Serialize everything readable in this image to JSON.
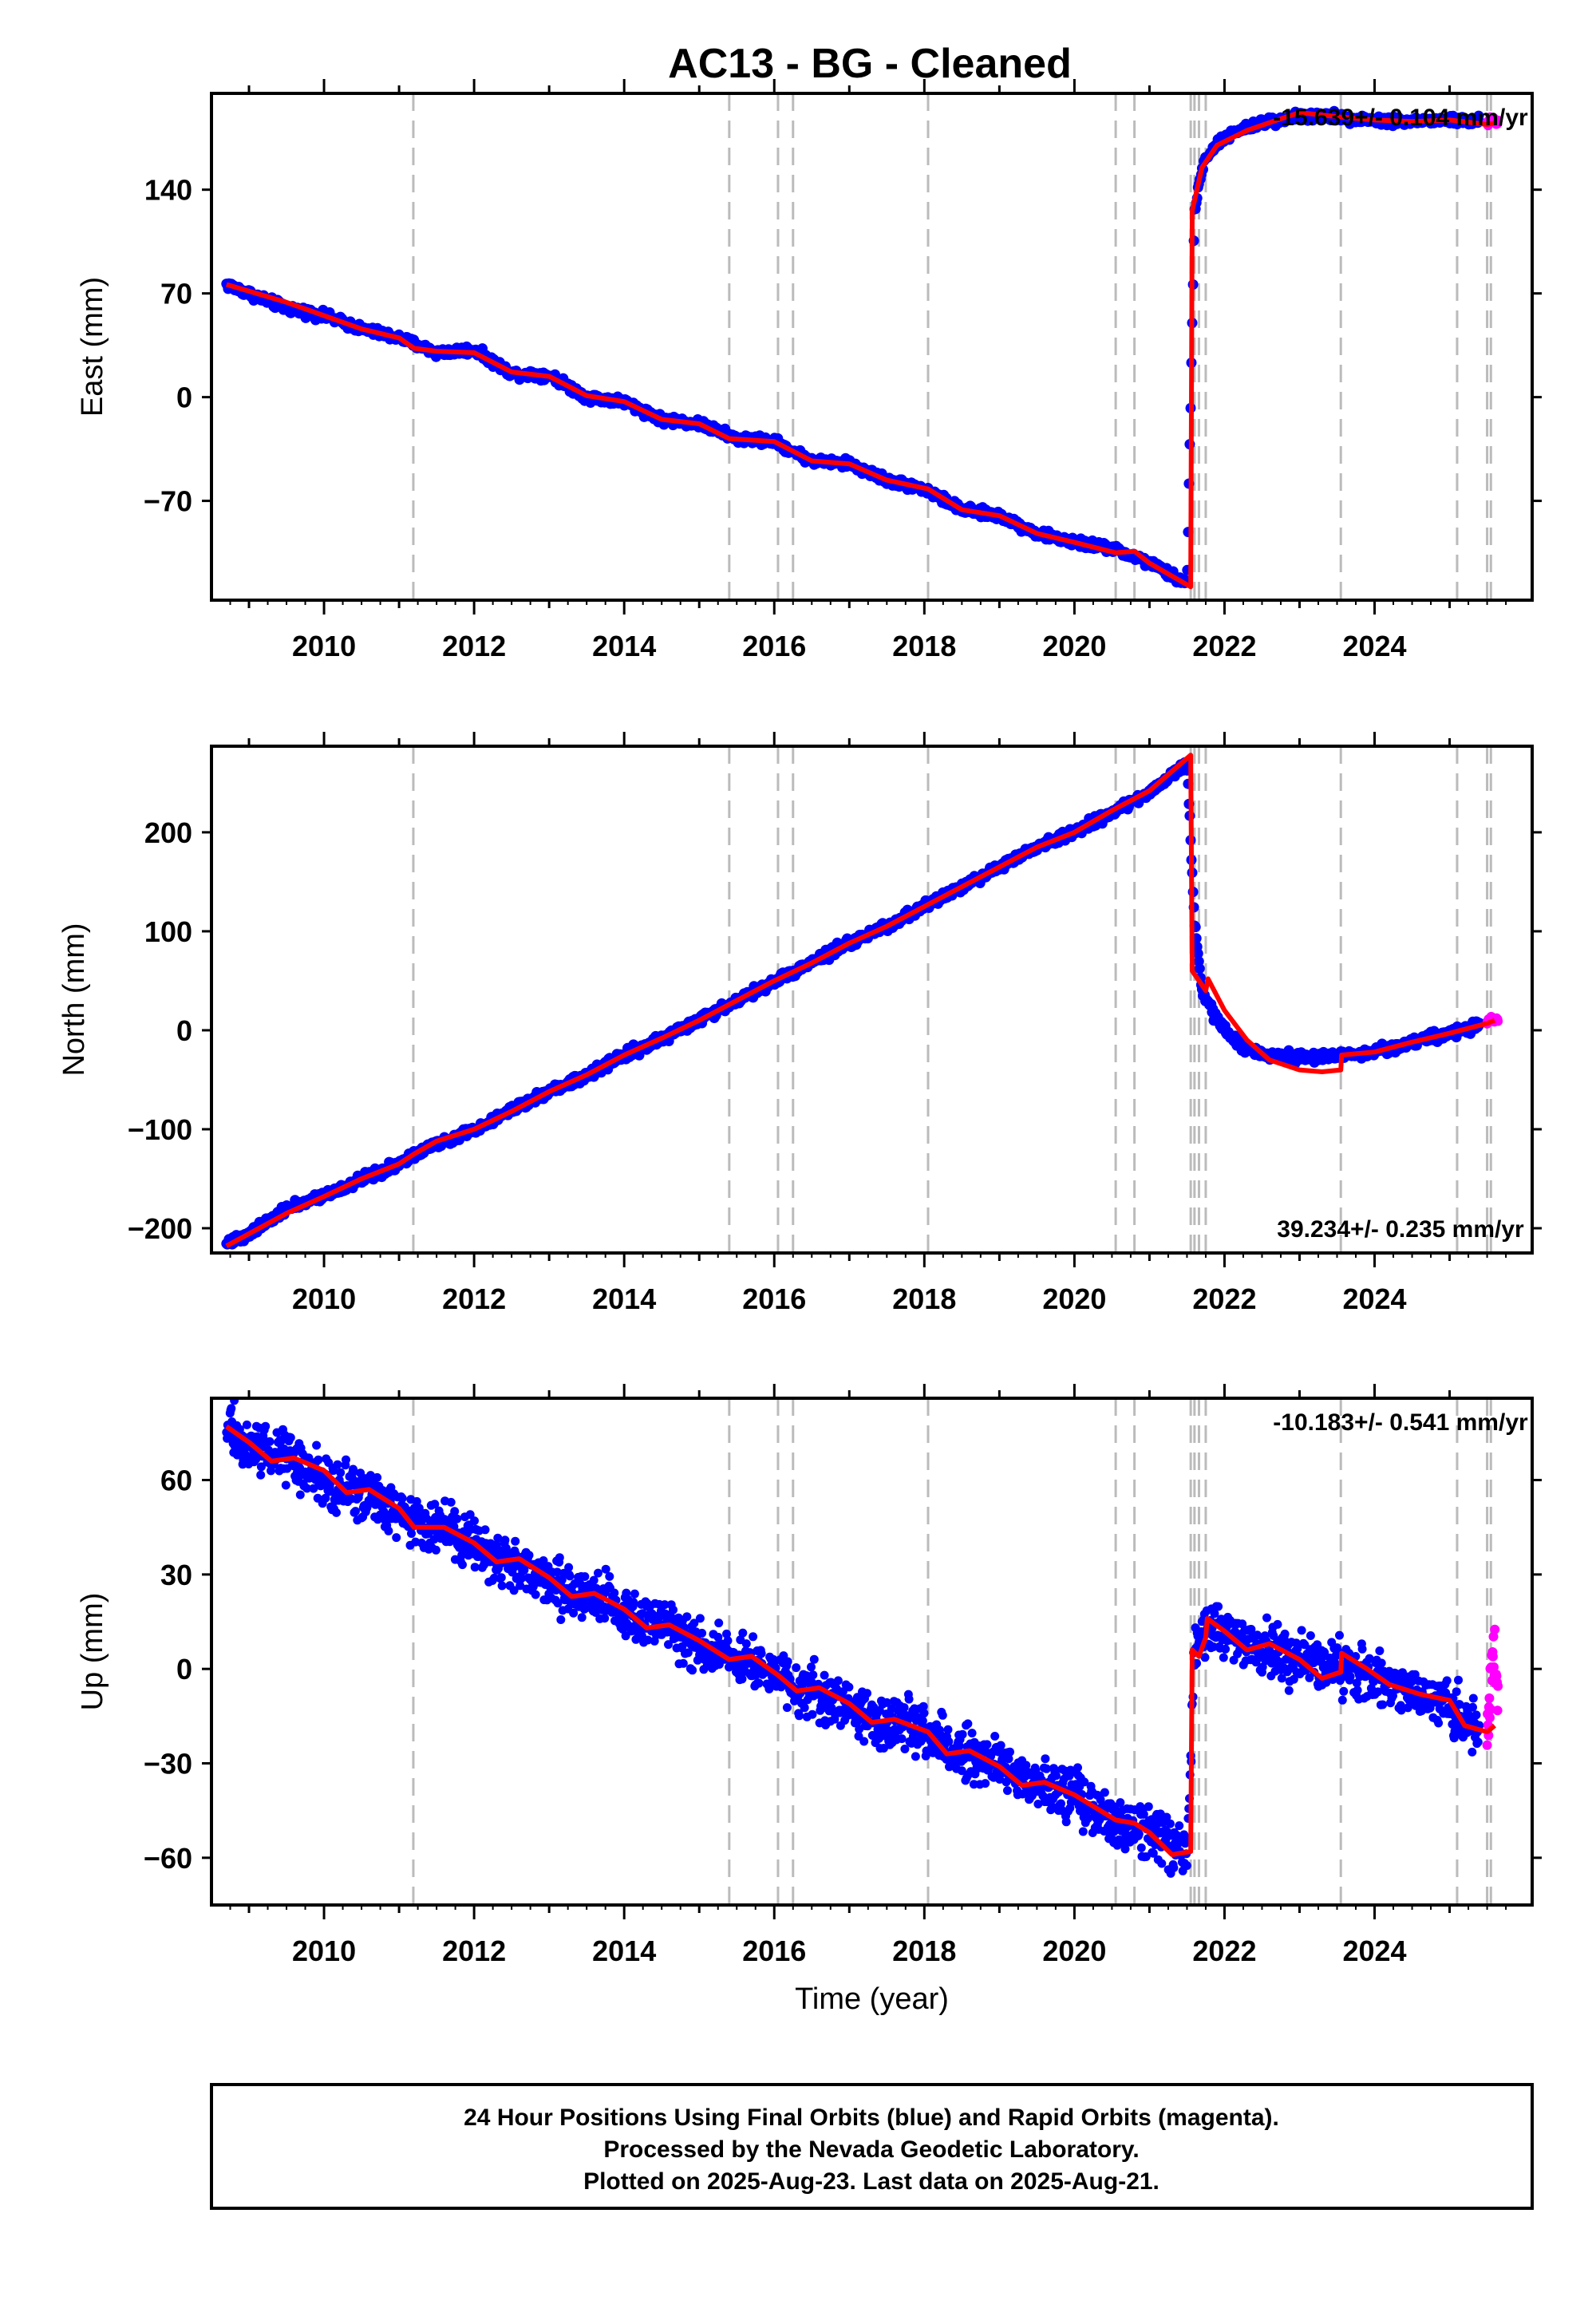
{
  "title": "AC13  - BG - Cleaned",
  "colors": {
    "final_points": "#0000ff",
    "rapid_points": "#ff00ff",
    "model_line": "#ff0000",
    "event_lines": "#bbbbbb",
    "frame": "#000000"
  },
  "chart_data": [
    {
      "type": "scatter",
      "component": "East",
      "ylabel": "East (mm)",
      "xlabel": "",
      "xlim": [
        2008.5,
        2026.1
      ],
      "ylim": [
        -137,
        205
      ],
      "yticks": [
        -70,
        0,
        70,
        140
      ],
      "xticks": [
        2010,
        2012,
        2014,
        2016,
        2018,
        2020,
        2022,
        2024
      ],
      "rate_text": "-15.639+/- 0.104 mm/yr",
      "rate_position": "top-right",
      "event_lines": [
        2011.19,
        2015.4,
        2016.05,
        2016.25,
        2018.05,
        2020.55,
        2020.8,
        2021.55,
        2021.6,
        2021.66,
        2021.75,
        2023.55,
        2025.1,
        2025.5,
        2025.55
      ],
      "series": [
        {
          "name": "Final Orbits",
          "color": "blue",
          "x": [
            2008.7,
            2009.0,
            2009.5,
            2010.0,
            2010.5,
            2011.0,
            2011.5,
            2012.0,
            2012.5,
            2013.0,
            2013.5,
            2014.0,
            2014.5,
            2015.0,
            2015.5,
            2016.0,
            2016.5,
            2017.0,
            2017.5,
            2018.0,
            2018.5,
            2019.0,
            2019.5,
            2020.0,
            2020.5,
            2021.0,
            2021.5,
            2021.6,
            2021.7,
            2021.9,
            2022.2,
            2022.5,
            2023.0,
            2023.5,
            2024.0,
            2024.5,
            2025.0,
            2025.4
          ],
          "y": [
            76,
            70,
            60,
            55,
            46,
            40,
            30,
            32,
            16,
            15,
            0,
            -3,
            -15,
            -18,
            -28,
            -30,
            -43,
            -45,
            -56,
            -62,
            -76,
            -80,
            -92,
            -98,
            -102,
            -112,
            -126,
            125,
            155,
            172,
            180,
            185,
            190,
            189,
            187,
            186,
            187,
            186
          ]
        },
        {
          "name": "Rapid Orbits",
          "color": "magenta",
          "x": [
            2025.5,
            2025.55,
            2025.6,
            2025.65
          ],
          "y": [
            184,
            188,
            186,
            185
          ]
        }
      ],
      "model": {
        "x": [
          2008.7,
          2009.5,
          2010.0,
          2010.5,
          2011.0,
          2011.2,
          2011.5,
          2012.0,
          2012.5,
          2013.0,
          2013.5,
          2014.0,
          2014.5,
          2015.0,
          2015.4,
          2016.0,
          2016.5,
          2017.0,
          2017.5,
          2018.05,
          2018.5,
          2019.0,
          2019.5,
          2020.0,
          2020.55,
          2020.8,
          2021.0,
          2021.55,
          2021.57,
          2021.7,
          2021.9,
          2022.3,
          2022.7,
          2023.0,
          2023.55,
          2024.0,
          2024.5,
          2025.0,
          2025.5,
          2025.6
        ],
        "y": [
          76,
          64,
          55,
          46,
          40,
          33,
          31,
          30,
          17,
          14,
          1,
          -3,
          -15,
          -18,
          -28,
          -30,
          -43,
          -45,
          -56,
          -62,
          -76,
          -80,
          -92,
          -98,
          -105,
          -104,
          -112,
          -128,
          126,
          155,
          170,
          180,
          187,
          192,
          189,
          187,
          186,
          187,
          184,
          185
        ]
      }
    },
    {
      "type": "scatter",
      "component": "North",
      "ylabel": "North (mm)",
      "xlabel": "",
      "xlim": [
        2008.5,
        2026.1
      ],
      "ylim": [
        -225,
        287
      ],
      "yticks": [
        -200,
        -100,
        0,
        100,
        200
      ],
      "xticks": [
        2010,
        2012,
        2014,
        2016,
        2018,
        2020,
        2022,
        2024
      ],
      "rate_text": "39.234+/- 0.235 mm/yr",
      "rate_position": "bottom-right",
      "event_lines": [
        2011.19,
        2015.4,
        2016.05,
        2016.25,
        2018.05,
        2020.55,
        2020.8,
        2021.55,
        2021.6,
        2021.66,
        2021.75,
        2023.55,
        2025.1,
        2025.5,
        2025.55
      ],
      "series": [
        {
          "name": "Final Orbits",
          "color": "blue",
          "x": [
            2008.7,
            2009.0,
            2009.5,
            2010.0,
            2010.5,
            2011.0,
            2011.5,
            2012.0,
            2012.5,
            2013.0,
            2013.5,
            2014.0,
            2014.5,
            2015.0,
            2015.5,
            2016.0,
            2016.5,
            2017.0,
            2017.5,
            2018.0,
            2018.5,
            2019.0,
            2019.5,
            2020.0,
            2020.5,
            2021.0,
            2021.5,
            2021.6,
            2021.7,
            2021.9,
            2022.2,
            2022.5,
            2023.0,
            2023.5,
            2024.0,
            2024.5,
            2025.0,
            2025.4
          ],
          "y": [
            -215,
            -205,
            -180,
            -168,
            -150,
            -135,
            -115,
            -100,
            -80,
            -62,
            -45,
            -25,
            -8,
            10,
            30,
            50,
            68,
            88,
            105,
            125,
            145,
            165,
            185,
            200,
            220,
            240,
            270,
            110,
            40,
            10,
            -15,
            -25,
            -28,
            -25,
            -22,
            -12,
            -3,
            5
          ]
        },
        {
          "name": "Rapid Orbits",
          "color": "magenta",
          "x": [
            2025.5,
            2025.55,
            2025.6,
            2025.65
          ],
          "y": [
            8,
            12,
            10,
            11
          ]
        }
      ],
      "model": {
        "x": [
          2008.7,
          2009.5,
          2010.0,
          2010.5,
          2011.0,
          2011.2,
          2011.5,
          2012.0,
          2012.5,
          2013.0,
          2013.5,
          2014.0,
          2014.5,
          2015.0,
          2015.5,
          2016.0,
          2016.5,
          2017.0,
          2017.5,
          2018.0,
          2018.5,
          2019.0,
          2019.5,
          2020.0,
          2020.5,
          2021.0,
          2021.55,
          2021.57,
          2021.75,
          2021.78,
          2022.0,
          2022.3,
          2022.6,
          2023.0,
          2023.3,
          2023.55,
          2023.56,
          2024.0,
          2024.5,
          2025.0,
          2025.5,
          2025.6
        ],
        "y": [
          -218,
          -185,
          -168,
          -150,
          -135,
          -125,
          -112,
          -100,
          -82,
          -62,
          -45,
          -25,
          -8,
          10,
          30,
          50,
          68,
          88,
          105,
          125,
          145,
          165,
          185,
          200,
          222,
          242,
          278,
          60,
          40,
          52,
          20,
          -10,
          -30,
          -40,
          -42,
          -40,
          -25,
          -22,
          -12,
          -3,
          7,
          10
        ]
      }
    },
    {
      "type": "scatter",
      "component": "Up",
      "ylabel": "Up (mm)",
      "xlabel": "Time (year)",
      "xlim": [
        2008.5,
        2026.1
      ],
      "ylim": [
        -75,
        86
      ],
      "yticks": [
        -60,
        -30,
        0,
        30,
        60
      ],
      "xticks": [
        2010,
        2012,
        2014,
        2016,
        2018,
        2020,
        2022,
        2024
      ],
      "rate_text": "-10.183+/- 0.541 mm/yr",
      "rate_position": "top-right",
      "event_lines": [
        2011.19,
        2015.4,
        2016.05,
        2016.25,
        2018.05,
        2020.55,
        2020.8,
        2021.55,
        2021.6,
        2021.66,
        2021.75,
        2023.55,
        2025.1,
        2025.5,
        2025.55
      ],
      "series": [
        {
          "name": "Final Orbits",
          "color": "blue",
          "x": [
            2008.7,
            2009.0,
            2009.5,
            2010.0,
            2010.5,
            2011.0,
            2011.5,
            2012.0,
            2012.5,
            2013.0,
            2013.5,
            2014.0,
            2014.5,
            2015.0,
            2015.5,
            2016.0,
            2016.5,
            2017.0,
            2017.5,
            2018.0,
            2018.5,
            2019.0,
            2019.5,
            2020.0,
            2020.5,
            2021.0,
            2021.5,
            2021.6,
            2021.7,
            2021.9,
            2022.2,
            2022.5,
            2023.0,
            2023.5,
            2024.0,
            2024.5,
            2025.0,
            2025.4
          ],
          "y": [
            78,
            70,
            68,
            60,
            56,
            50,
            45,
            40,
            34,
            28,
            24,
            18,
            14,
            8,
            3,
            -2,
            -8,
            -12,
            -17,
            -20,
            -27,
            -30,
            -37,
            -40,
            -48,
            -52,
            -58,
            5,
            10,
            12,
            9,
            6,
            3,
            0,
            -3,
            -8,
            -12,
            -20
          ]
        },
        {
          "name": "Rapid Orbits",
          "color": "magenta",
          "x": [
            2025.5,
            2025.55,
            2025.6,
            2025.65
          ],
          "y": [
            -18,
            -5,
            5,
            -12
          ]
        }
      ],
      "model": {
        "x": [
          2008.7,
          2009.0,
          2009.3,
          2009.6,
          2010.0,
          2010.3,
          2010.6,
          2011.0,
          2011.2,
          2011.6,
          2012.0,
          2012.3,
          2012.6,
          2013.0,
          2013.3,
          2013.6,
          2014.0,
          2014.3,
          2014.6,
          2015.0,
          2015.4,
          2015.7,
          2016.05,
          2016.3,
          2016.6,
          2017.0,
          2017.3,
          2017.6,
          2018.05,
          2018.3,
          2018.6,
          2019.0,
          2019.3,
          2019.6,
          2020.0,
          2020.55,
          2020.8,
          2021.0,
          2021.3,
          2021.55,
          2021.57,
          2021.66,
          2021.75,
          2021.77,
          2022.0,
          2022.3,
          2022.6,
          2023.0,
          2023.3,
          2023.55,
          2023.56,
          2023.9,
          2024.2,
          2024.6,
          2025.0,
          2025.2,
          2025.5,
          2025.6
        ],
        "y": [
          77,
          72,
          66,
          67,
          63,
          56,
          57,
          51,
          45,
          45,
          40,
          34,
          35,
          29,
          23,
          24,
          19,
          13,
          14,
          9,
          3,
          4,
          -2,
          -7,
          -6,
          -11,
          -17,
          -16,
          -20,
          -27,
          -26,
          -31,
          -37,
          -36,
          -40,
          -48,
          -49,
          -52,
          -59,
          -58,
          6,
          4,
          10,
          16,
          12,
          6,
          8,
          3,
          -3,
          -1,
          5,
          0,
          -5,
          -8,
          -10,
          -18,
          -20,
          -18
        ]
      }
    }
  ],
  "footer": {
    "line1": "24 Hour Positions Using Final Orbits (blue) and Rapid Orbits (magenta).",
    "line2": "Processed by the Nevada Geodetic Laboratory.",
    "line3": "Plotted on 2025-Aug-23. Last data on 2025-Aug-21."
  }
}
